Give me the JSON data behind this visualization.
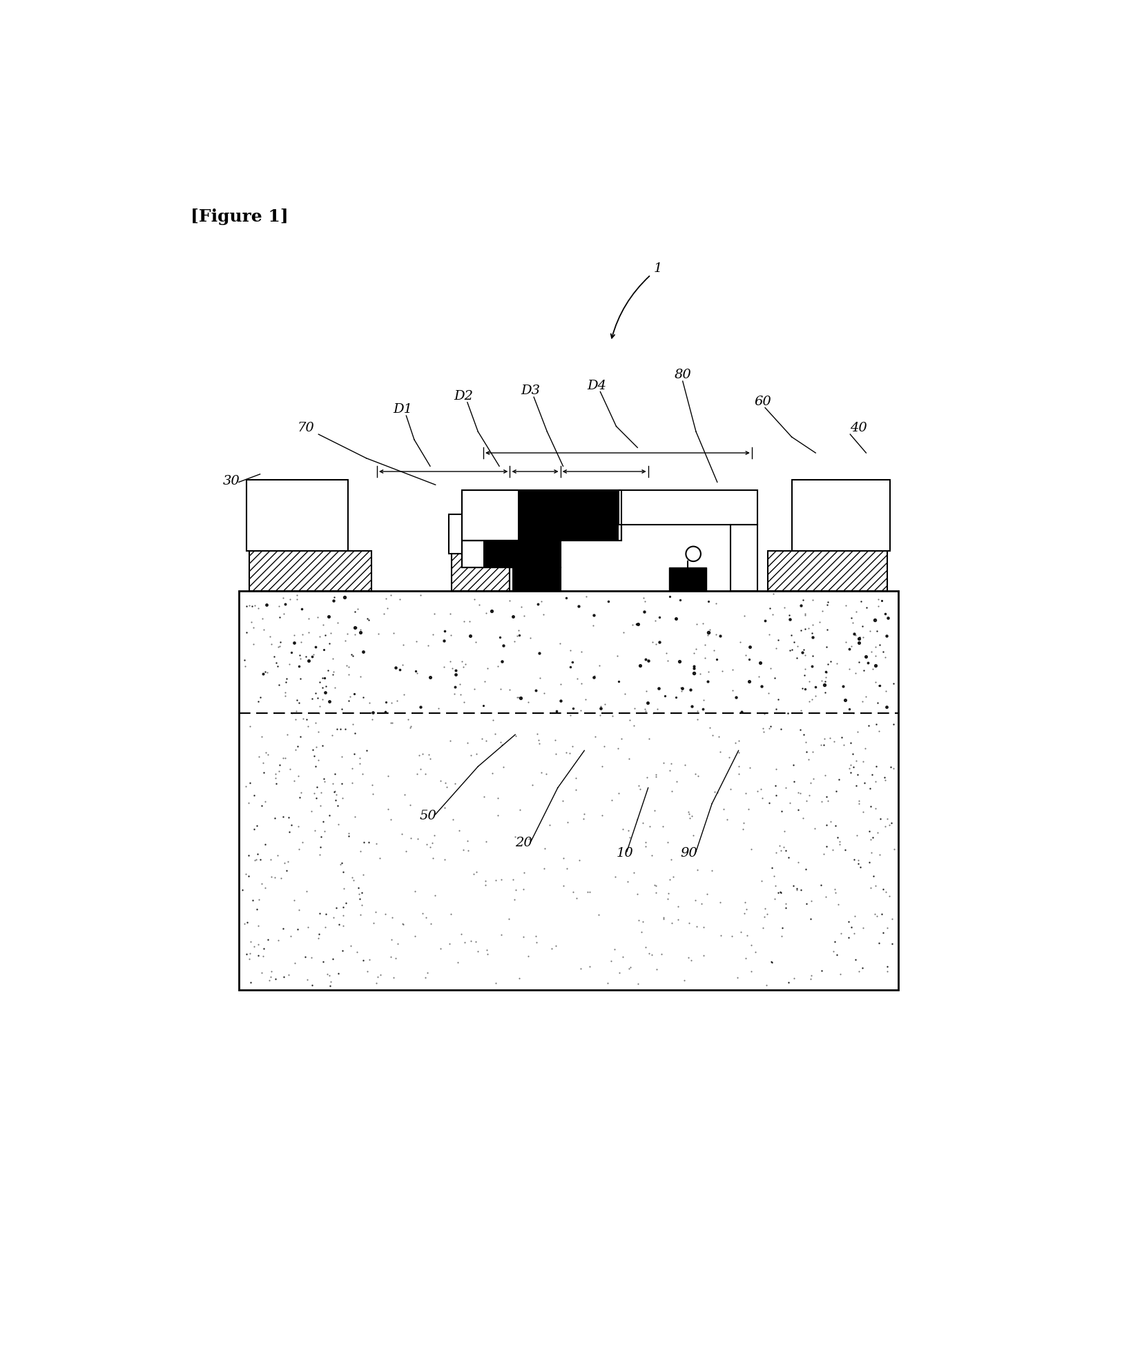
{
  "bg_color": "#ffffff",
  "fig_width": 16.25,
  "fig_height": 19.57,
  "labels": {
    "figure": "[Figure 1]",
    "ref1": "1",
    "ref10": "10",
    "ref20": "20",
    "ref30": "30",
    "ref40": "40",
    "ref50": "50",
    "ref60": "60",
    "ref70": "70",
    "ref80": "80",
    "ref90": "90",
    "D1": "D1",
    "D2": "D2",
    "D3": "D3",
    "D4": "D4"
  }
}
